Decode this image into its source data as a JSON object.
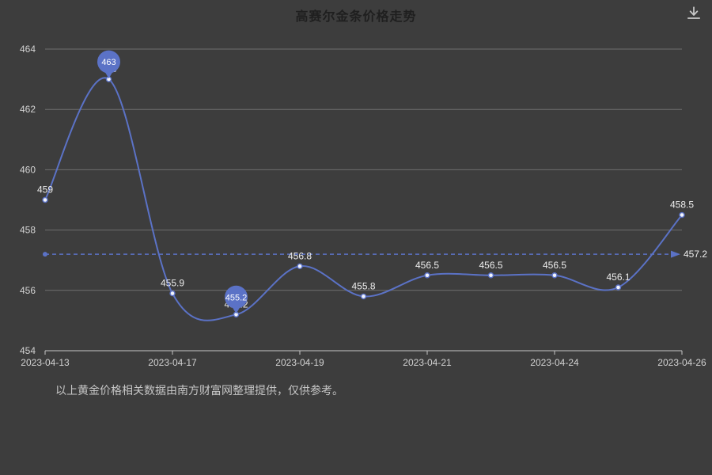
{
  "title": "高赛尔金条价格走势",
  "footer": {
    "note": "以上黄金价格相关数据由南方财富网整理提供，仅供参考。"
  },
  "toolbar": {
    "download_icon_name": "download-icon"
  },
  "colors": {
    "background": "#3d3d3d",
    "line": "#5b72c6",
    "grid": "#6e6e6e",
    "axis": "#c8c8c8",
    "axis_label": "#d2d2d2",
    "value_label": "#ededed",
    "pin_label": "#ffffff",
    "title": "#1f1f1f",
    "note": "#c6c6c6"
  },
  "chart_data": {
    "type": "line",
    "title": "高赛尔金条价格走势",
    "x": [
      "2023-04-13",
      "2023-04-14",
      "2023-04-17",
      "2023-04-18",
      "2023-04-19",
      "2023-04-20",
      "2023-04-21",
      "2023-04-22",
      "2023-04-24",
      "2023-04-25",
      "2023-04-26"
    ],
    "values": [
      459,
      463,
      455.9,
      455.2,
      456.8,
      455.8,
      456.5,
      456.5,
      456.5,
      456.1,
      458.5
    ],
    "visible_x_ticks": [
      "2023-04-13",
      "2023-04-17",
      "2023-04-19",
      "2023-04-21",
      "2023-04-24",
      "2023-04-26"
    ],
    "visible_x_tick_indices": [
      0,
      2,
      4,
      6,
      8,
      10
    ],
    "y_ticks": [
      454,
      456,
      458,
      460,
      462,
      464
    ],
    "ylim": [
      454,
      464
    ],
    "xlabel": "",
    "ylabel": "",
    "smooth": true,
    "grid": "horizontal",
    "legend": "none",
    "average_line": {
      "value": 457.2,
      "label": "457.2",
      "style": "dashed"
    },
    "max_point": {
      "value": 463,
      "label": "463"
    },
    "min_point": {
      "value": 455.2,
      "label": "455.2"
    }
  }
}
